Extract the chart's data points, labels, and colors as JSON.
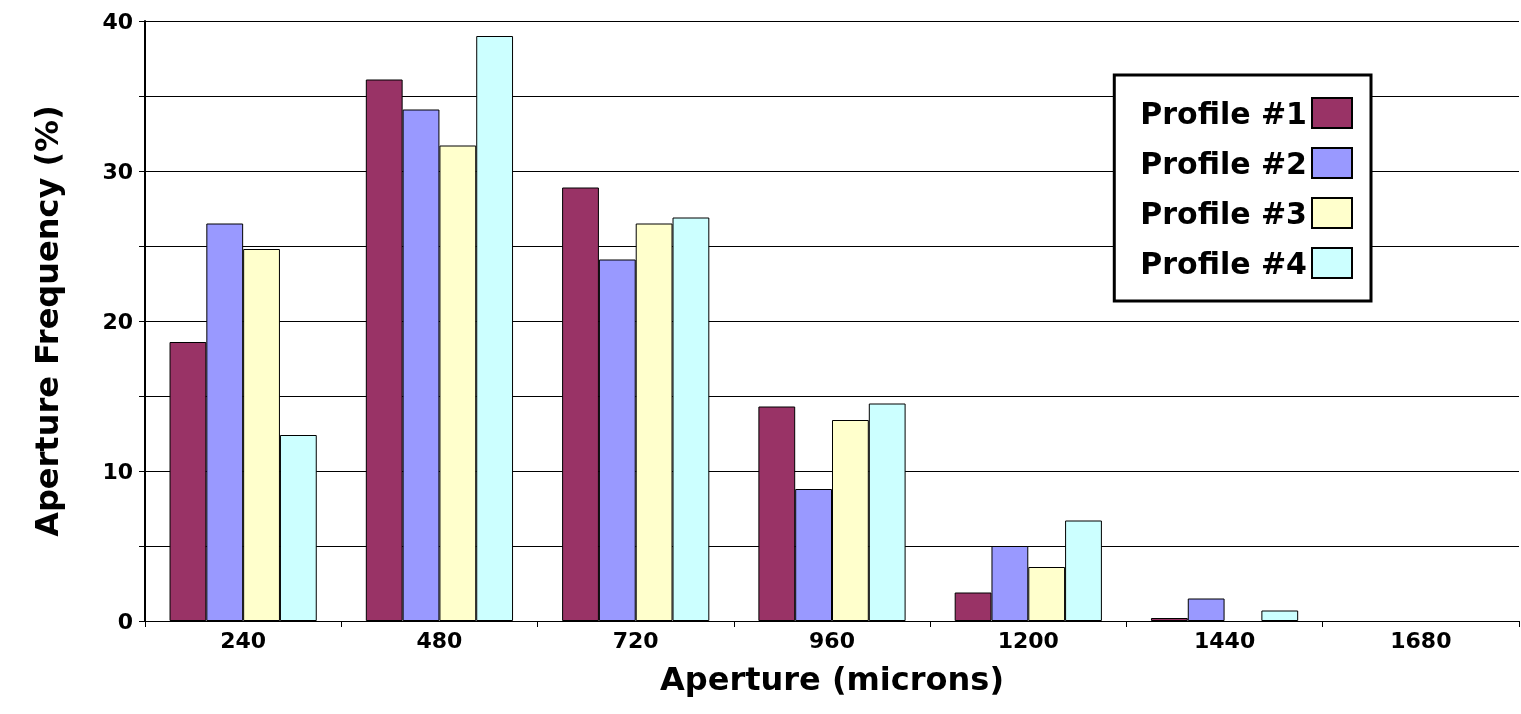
{
  "chart_data": {
    "type": "bar",
    "xlabel": "Aperture (microns)",
    "ylabel": "Aperture Frequency (%)",
    "categories": [
      "240",
      "480",
      "720",
      "960",
      "1200",
      "1440",
      "1680"
    ],
    "series": [
      {
        "name": "Profile #1",
        "color": "#993366",
        "values": [
          18.6,
          36.1,
          28.9,
          14.3,
          1.9,
          0.2,
          0
        ]
      },
      {
        "name": "Profile #2",
        "color": "#9999ff",
        "values": [
          26.5,
          34.1,
          24.1,
          8.8,
          5.0,
          1.5,
          0
        ]
      },
      {
        "name": "Profile #3",
        "color": "#ffffcc",
        "values": [
          24.8,
          31.7,
          26.5,
          13.4,
          3.6,
          0,
          0
        ]
      },
      {
        "name": "Profile #4",
        "color": "#ccffff",
        "values": [
          12.4,
          39.0,
          26.9,
          14.5,
          6.7,
          0.7,
          0
        ]
      }
    ],
    "ylim": [
      0,
      40
    ],
    "yticks": [
      0,
      {
        "value": 5,
        "label": null
      },
      10,
      {
        "value": 15,
        "label": null
      },
      20,
      {
        "value": 25,
        "label": null
      },
      30,
      {
        "value": 35,
        "label": null
      },
      40
    ],
    "grid": "y",
    "legend": "top right"
  }
}
